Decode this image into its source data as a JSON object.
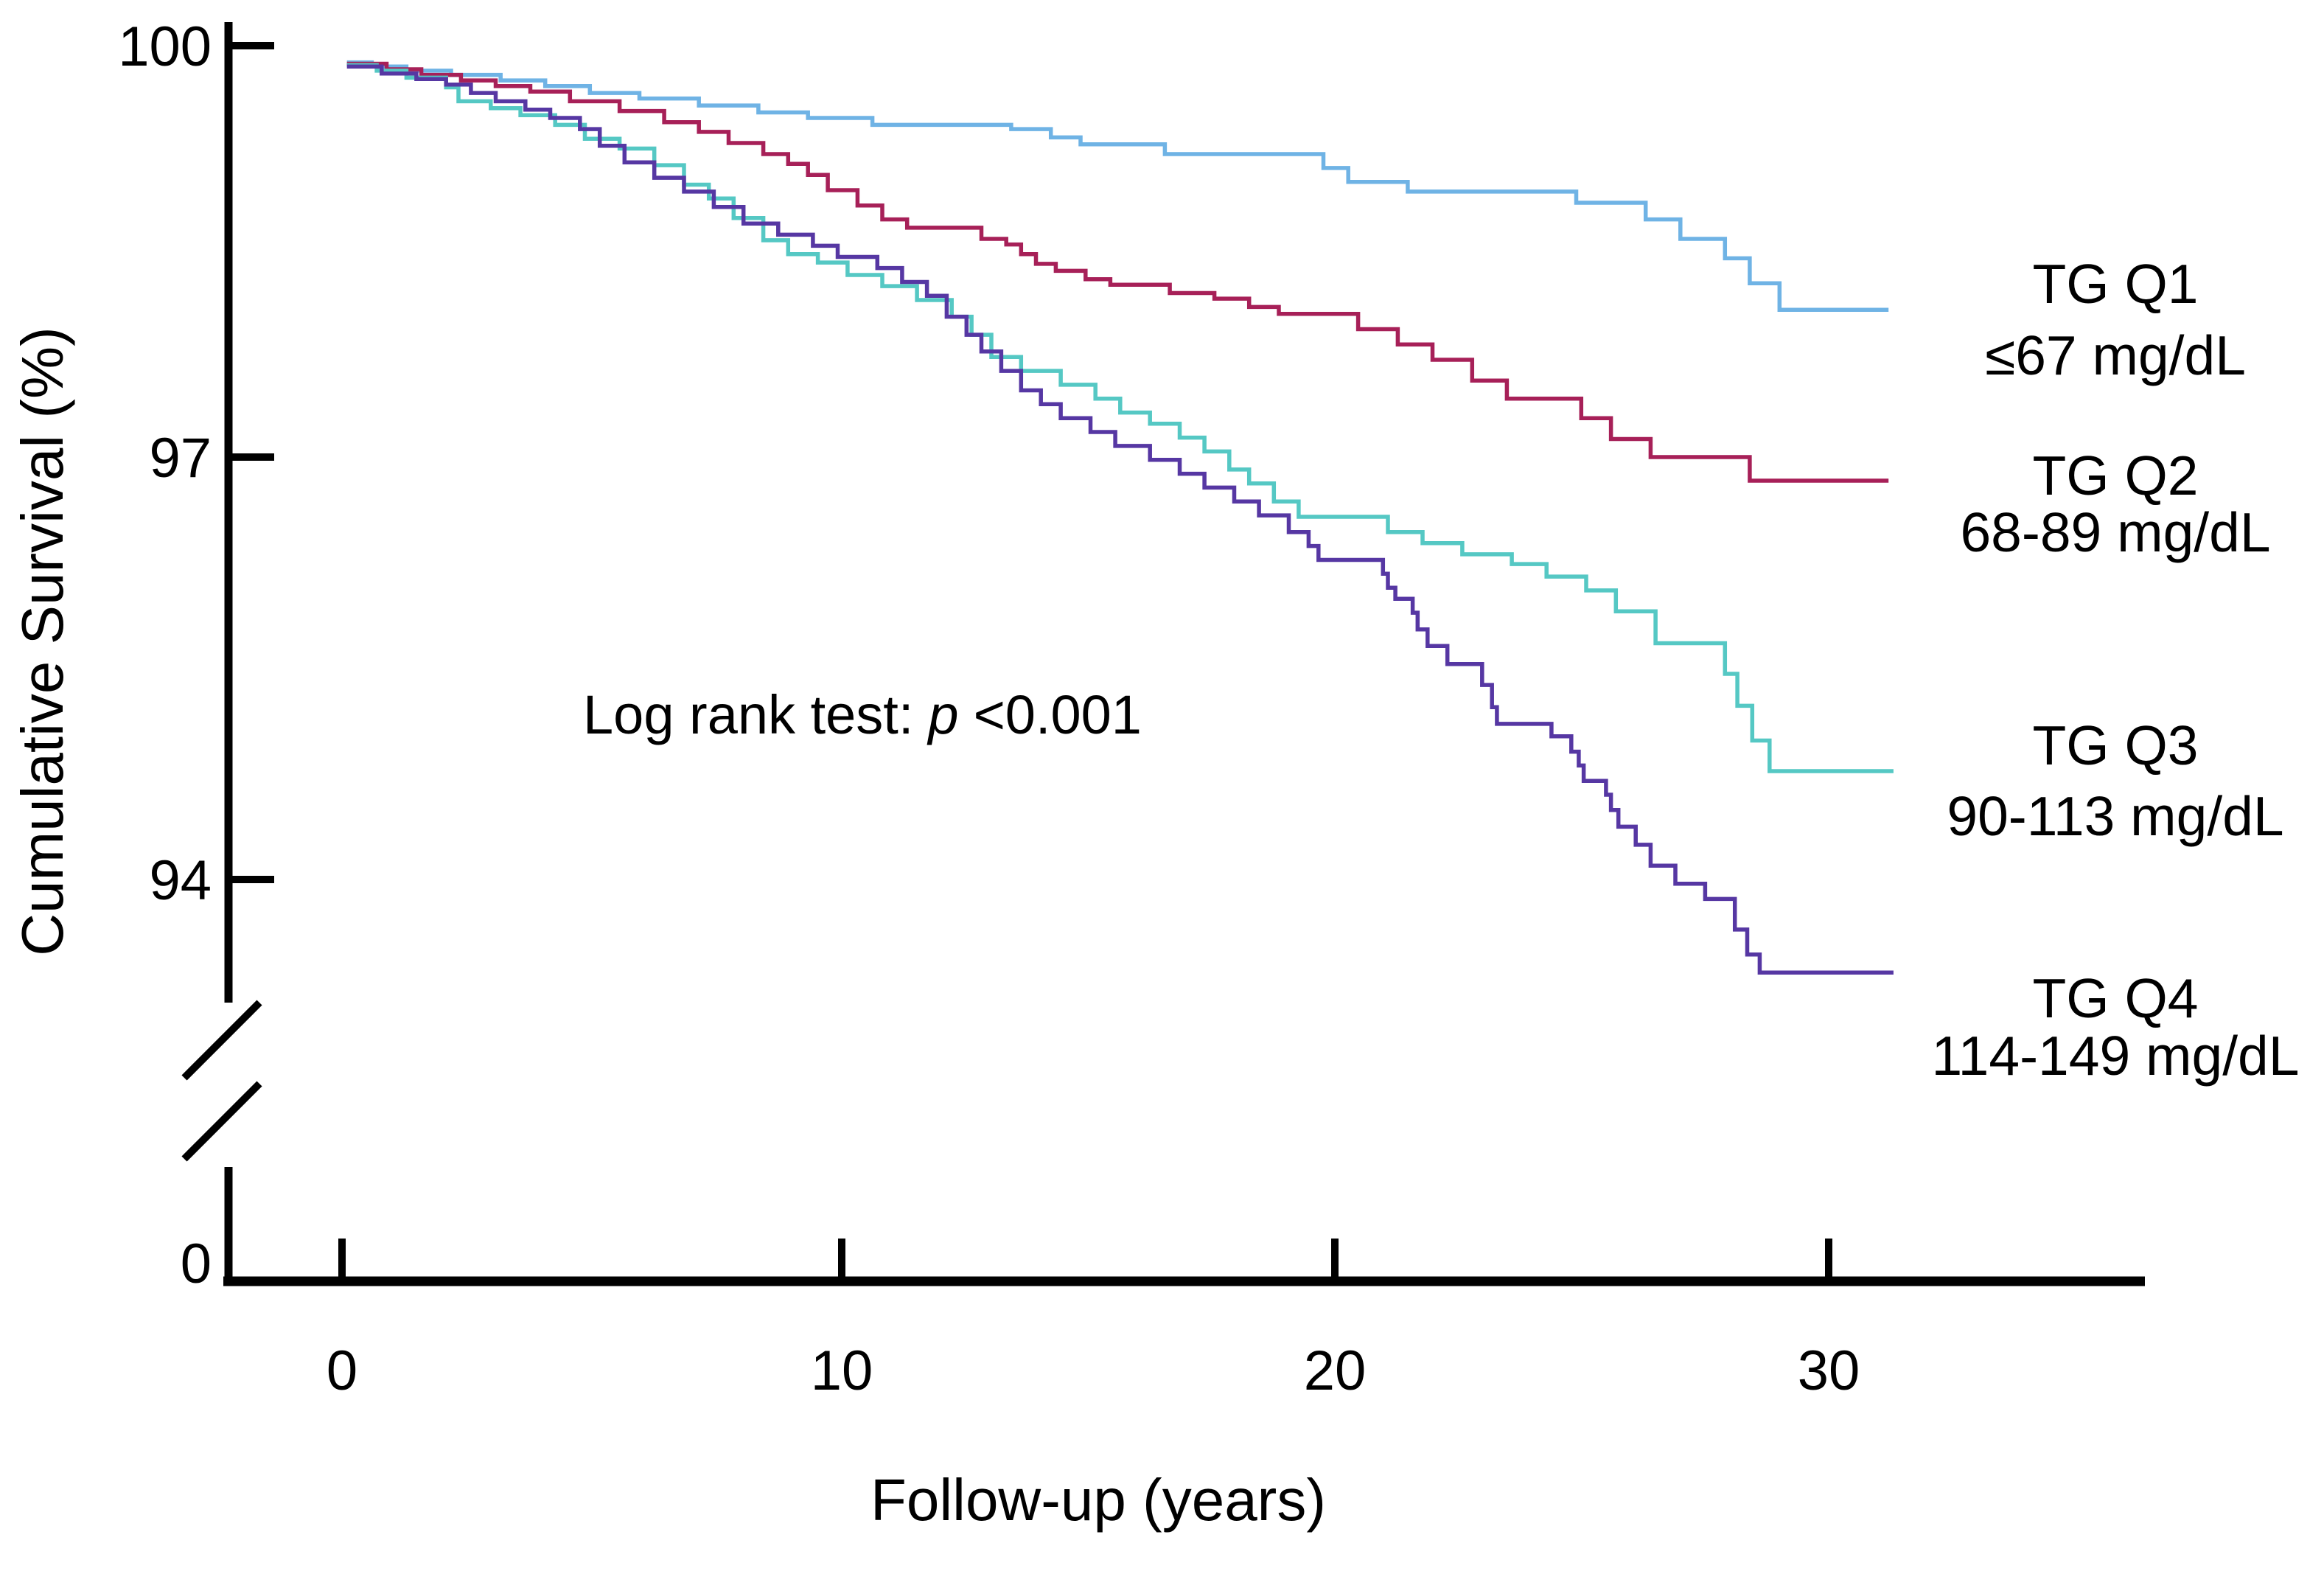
{
  "figure": {
    "y_axis": {
      "title": "Cumulative Survival (%)",
      "tick_100": "100",
      "tick_97": "97",
      "tick_94": "94",
      "tick_0": "0"
    },
    "x_axis": {
      "title": "Follow-up  (years)",
      "tick_0": "0",
      "tick_10": "10",
      "tick_20": "20",
      "tick_30": "30"
    },
    "annotation_parts": {
      "prefix": "Log rank test:",
      "p_symbol": "p",
      "value": "<0.001"
    }
  },
  "chart_data": {
    "type": "line",
    "subtype": "kaplan-meier-step-survival",
    "xlabel": "Follow-up  (years)",
    "ylabel": "Cumulative Survival (%)",
    "x_ticks": [
      0,
      10,
      20,
      30
    ],
    "y_ticks_top_section": [
      100,
      97,
      94
    ],
    "y_tick_bottom": 0,
    "xlim": [
      0,
      31.5
    ],
    "ylim_visible": [
      93,
      100
    ],
    "y_axis_break": true,
    "grid": false,
    "legend_position": "right",
    "annotation": "Log rank test: p <0.001",
    "series": [
      {
        "name": "TG Q1",
        "range": "≤67 mg/dL",
        "color": "#6FB3E5",
        "end_year": 31.2,
        "final_pct": 98.1,
        "points": [
          [
            0.1,
            99.88
          ],
          [
            0.6,
            99.85
          ],
          [
            1.3,
            99.82
          ],
          [
            2.2,
            99.79
          ],
          [
            3.2,
            99.75
          ],
          [
            4.1,
            99.71
          ],
          [
            5.0,
            99.66
          ],
          [
            6.0,
            99.62
          ],
          [
            7.2,
            99.57
          ],
          [
            8.4,
            99.52
          ],
          [
            9.4,
            99.48
          ],
          [
            10.7,
            99.43
          ],
          [
            13.5,
            99.4
          ],
          [
            14.3,
            99.34
          ],
          [
            14.9,
            99.29
          ],
          [
            16.6,
            99.22
          ],
          [
            19.8,
            99.12
          ],
          [
            20.3,
            99.02
          ],
          [
            21.5,
            98.95
          ],
          [
            24.9,
            98.87
          ],
          [
            26.3,
            98.75
          ],
          [
            27.0,
            98.61
          ],
          [
            27.9,
            98.47
          ],
          [
            28.4,
            98.29
          ],
          [
            29.0,
            98.1
          ]
        ]
      },
      {
        "name": "TG Q2",
        "range": "68-89 mg/dL",
        "color": "#A72058",
        "end_year": 31.2,
        "final_pct": 96.9,
        "points": [
          [
            0.1,
            99.87
          ],
          [
            0.9,
            99.83
          ],
          [
            1.6,
            99.79
          ],
          [
            2.4,
            99.75
          ],
          [
            3.1,
            99.71
          ],
          [
            3.8,
            99.67
          ],
          [
            4.6,
            99.6
          ],
          [
            5.6,
            99.53
          ],
          [
            6.5,
            99.45
          ],
          [
            7.2,
            99.38
          ],
          [
            7.8,
            99.3
          ],
          [
            8.5,
            99.22
          ],
          [
            9.0,
            99.15
          ],
          [
            9.4,
            99.07
          ],
          [
            9.8,
            98.96
          ],
          [
            10.4,
            98.85
          ],
          [
            10.9,
            98.75
          ],
          [
            11.4,
            98.69
          ],
          [
            12.9,
            98.61
          ],
          [
            13.4,
            98.57
          ],
          [
            13.7,
            98.5
          ],
          [
            14.0,
            98.43
          ],
          [
            14.4,
            98.38
          ],
          [
            15.0,
            98.32
          ],
          [
            15.5,
            98.28
          ],
          [
            16.7,
            98.22
          ],
          [
            17.6,
            98.18
          ],
          [
            18.3,
            98.12
          ],
          [
            18.9,
            98.07
          ],
          [
            20.5,
            97.96
          ],
          [
            21.3,
            97.85
          ],
          [
            22.0,
            97.74
          ],
          [
            22.8,
            97.59
          ],
          [
            23.5,
            97.46
          ],
          [
            25.0,
            97.32
          ],
          [
            25.6,
            97.17
          ],
          [
            26.4,
            97.04
          ],
          [
            28.4,
            96.87
          ]
        ]
      },
      {
        "name": "TG Q3",
        "range": "90-113 mg/dL",
        "color": "#55C8C4",
        "end_year": 31.3,
        "final_pct": 94.8,
        "points": [
          [
            0.1,
            99.86
          ],
          [
            0.7,
            99.82
          ],
          [
            1.3,
            99.77
          ],
          [
            2.1,
            99.7
          ],
          [
            2.35,
            99.6
          ],
          [
            3.0,
            99.55
          ],
          [
            3.6,
            99.5
          ],
          [
            4.3,
            99.43
          ],
          [
            4.9,
            99.33
          ],
          [
            5.6,
            99.26
          ],
          [
            6.3,
            99.14
          ],
          [
            6.9,
            99.0
          ],
          [
            7.4,
            98.9
          ],
          [
            7.9,
            98.76
          ],
          [
            8.5,
            98.6
          ],
          [
            9.0,
            98.5
          ],
          [
            9.6,
            98.44
          ],
          [
            10.2,
            98.35
          ],
          [
            10.9,
            98.27
          ],
          [
            11.6,
            98.17
          ],
          [
            12.3,
            98.05
          ],
          [
            12.7,
            97.92
          ],
          [
            13.1,
            97.76
          ],
          [
            13.7,
            97.66
          ],
          [
            14.5,
            97.56
          ],
          [
            15.2,
            97.46
          ],
          [
            15.7,
            97.36
          ],
          [
            16.3,
            97.28
          ],
          [
            16.9,
            97.18
          ],
          [
            17.4,
            97.08
          ],
          [
            17.9,
            96.95
          ],
          [
            18.3,
            96.85
          ],
          [
            18.8,
            96.72
          ],
          [
            19.3,
            96.61
          ],
          [
            21.1,
            96.5
          ],
          [
            21.8,
            96.42
          ],
          [
            22.6,
            96.34
          ],
          [
            23.6,
            96.27
          ],
          [
            24.3,
            96.18
          ],
          [
            25.1,
            96.08
          ],
          [
            25.7,
            95.93
          ],
          [
            26.5,
            95.7
          ],
          [
            27.9,
            95.48
          ],
          [
            28.15,
            95.25
          ],
          [
            28.45,
            95.0
          ],
          [
            28.8,
            94.78
          ]
        ]
      },
      {
        "name": "TG Q4",
        "range": "114-149 mg/dL",
        "color": "#5637A3",
        "end_year": 31.3,
        "final_pct": 93.3,
        "points": [
          [
            0.1,
            99.85
          ],
          [
            0.8,
            99.8
          ],
          [
            1.5,
            99.76
          ],
          [
            2.1,
            99.72
          ],
          [
            2.6,
            99.66
          ],
          [
            3.1,
            99.6
          ],
          [
            3.7,
            99.54
          ],
          [
            4.2,
            99.48
          ],
          [
            4.8,
            99.4
          ],
          [
            5.2,
            99.28
          ],
          [
            5.7,
            99.16
          ],
          [
            6.3,
            99.05
          ],
          [
            6.9,
            98.95
          ],
          [
            7.5,
            98.84
          ],
          [
            8.1,
            98.72
          ],
          [
            8.8,
            98.64
          ],
          [
            9.5,
            98.56
          ],
          [
            10.0,
            98.48
          ],
          [
            10.8,
            98.4
          ],
          [
            11.3,
            98.3
          ],
          [
            11.8,
            98.2
          ],
          [
            12.2,
            98.05
          ],
          [
            12.6,
            97.92
          ],
          [
            12.9,
            97.8
          ],
          [
            13.3,
            97.66
          ],
          [
            13.7,
            97.52
          ],
          [
            14.1,
            97.42
          ],
          [
            14.5,
            97.32
          ],
          [
            15.1,
            97.22
          ],
          [
            15.6,
            97.12
          ],
          [
            16.3,
            97.02
          ],
          [
            16.9,
            96.92
          ],
          [
            17.4,
            96.82
          ],
          [
            18.0,
            96.72
          ],
          [
            18.5,
            96.62
          ],
          [
            19.1,
            96.5
          ],
          [
            19.5,
            96.4
          ],
          [
            19.7,
            96.3
          ],
          [
            21.0,
            96.2
          ],
          [
            21.1,
            96.1
          ],
          [
            21.25,
            96.02
          ],
          [
            21.6,
            95.92
          ],
          [
            21.7,
            95.8
          ],
          [
            21.9,
            95.68
          ],
          [
            22.3,
            95.55
          ],
          [
            23.0,
            95.4
          ],
          [
            23.2,
            95.24
          ],
          [
            23.3,
            95.12
          ],
          [
            24.4,
            95.03
          ],
          [
            24.8,
            94.92
          ],
          [
            24.95,
            94.82
          ],
          [
            25.05,
            94.71
          ],
          [
            25.5,
            94.61
          ],
          [
            25.6,
            94.5
          ],
          [
            25.75,
            94.38
          ],
          [
            26.1,
            94.25
          ],
          [
            26.4,
            94.1
          ],
          [
            26.9,
            93.97
          ],
          [
            27.5,
            93.86
          ],
          [
            28.1,
            93.64
          ],
          [
            28.35,
            93.46
          ],
          [
            28.6,
            93.33
          ]
        ]
      }
    ]
  }
}
